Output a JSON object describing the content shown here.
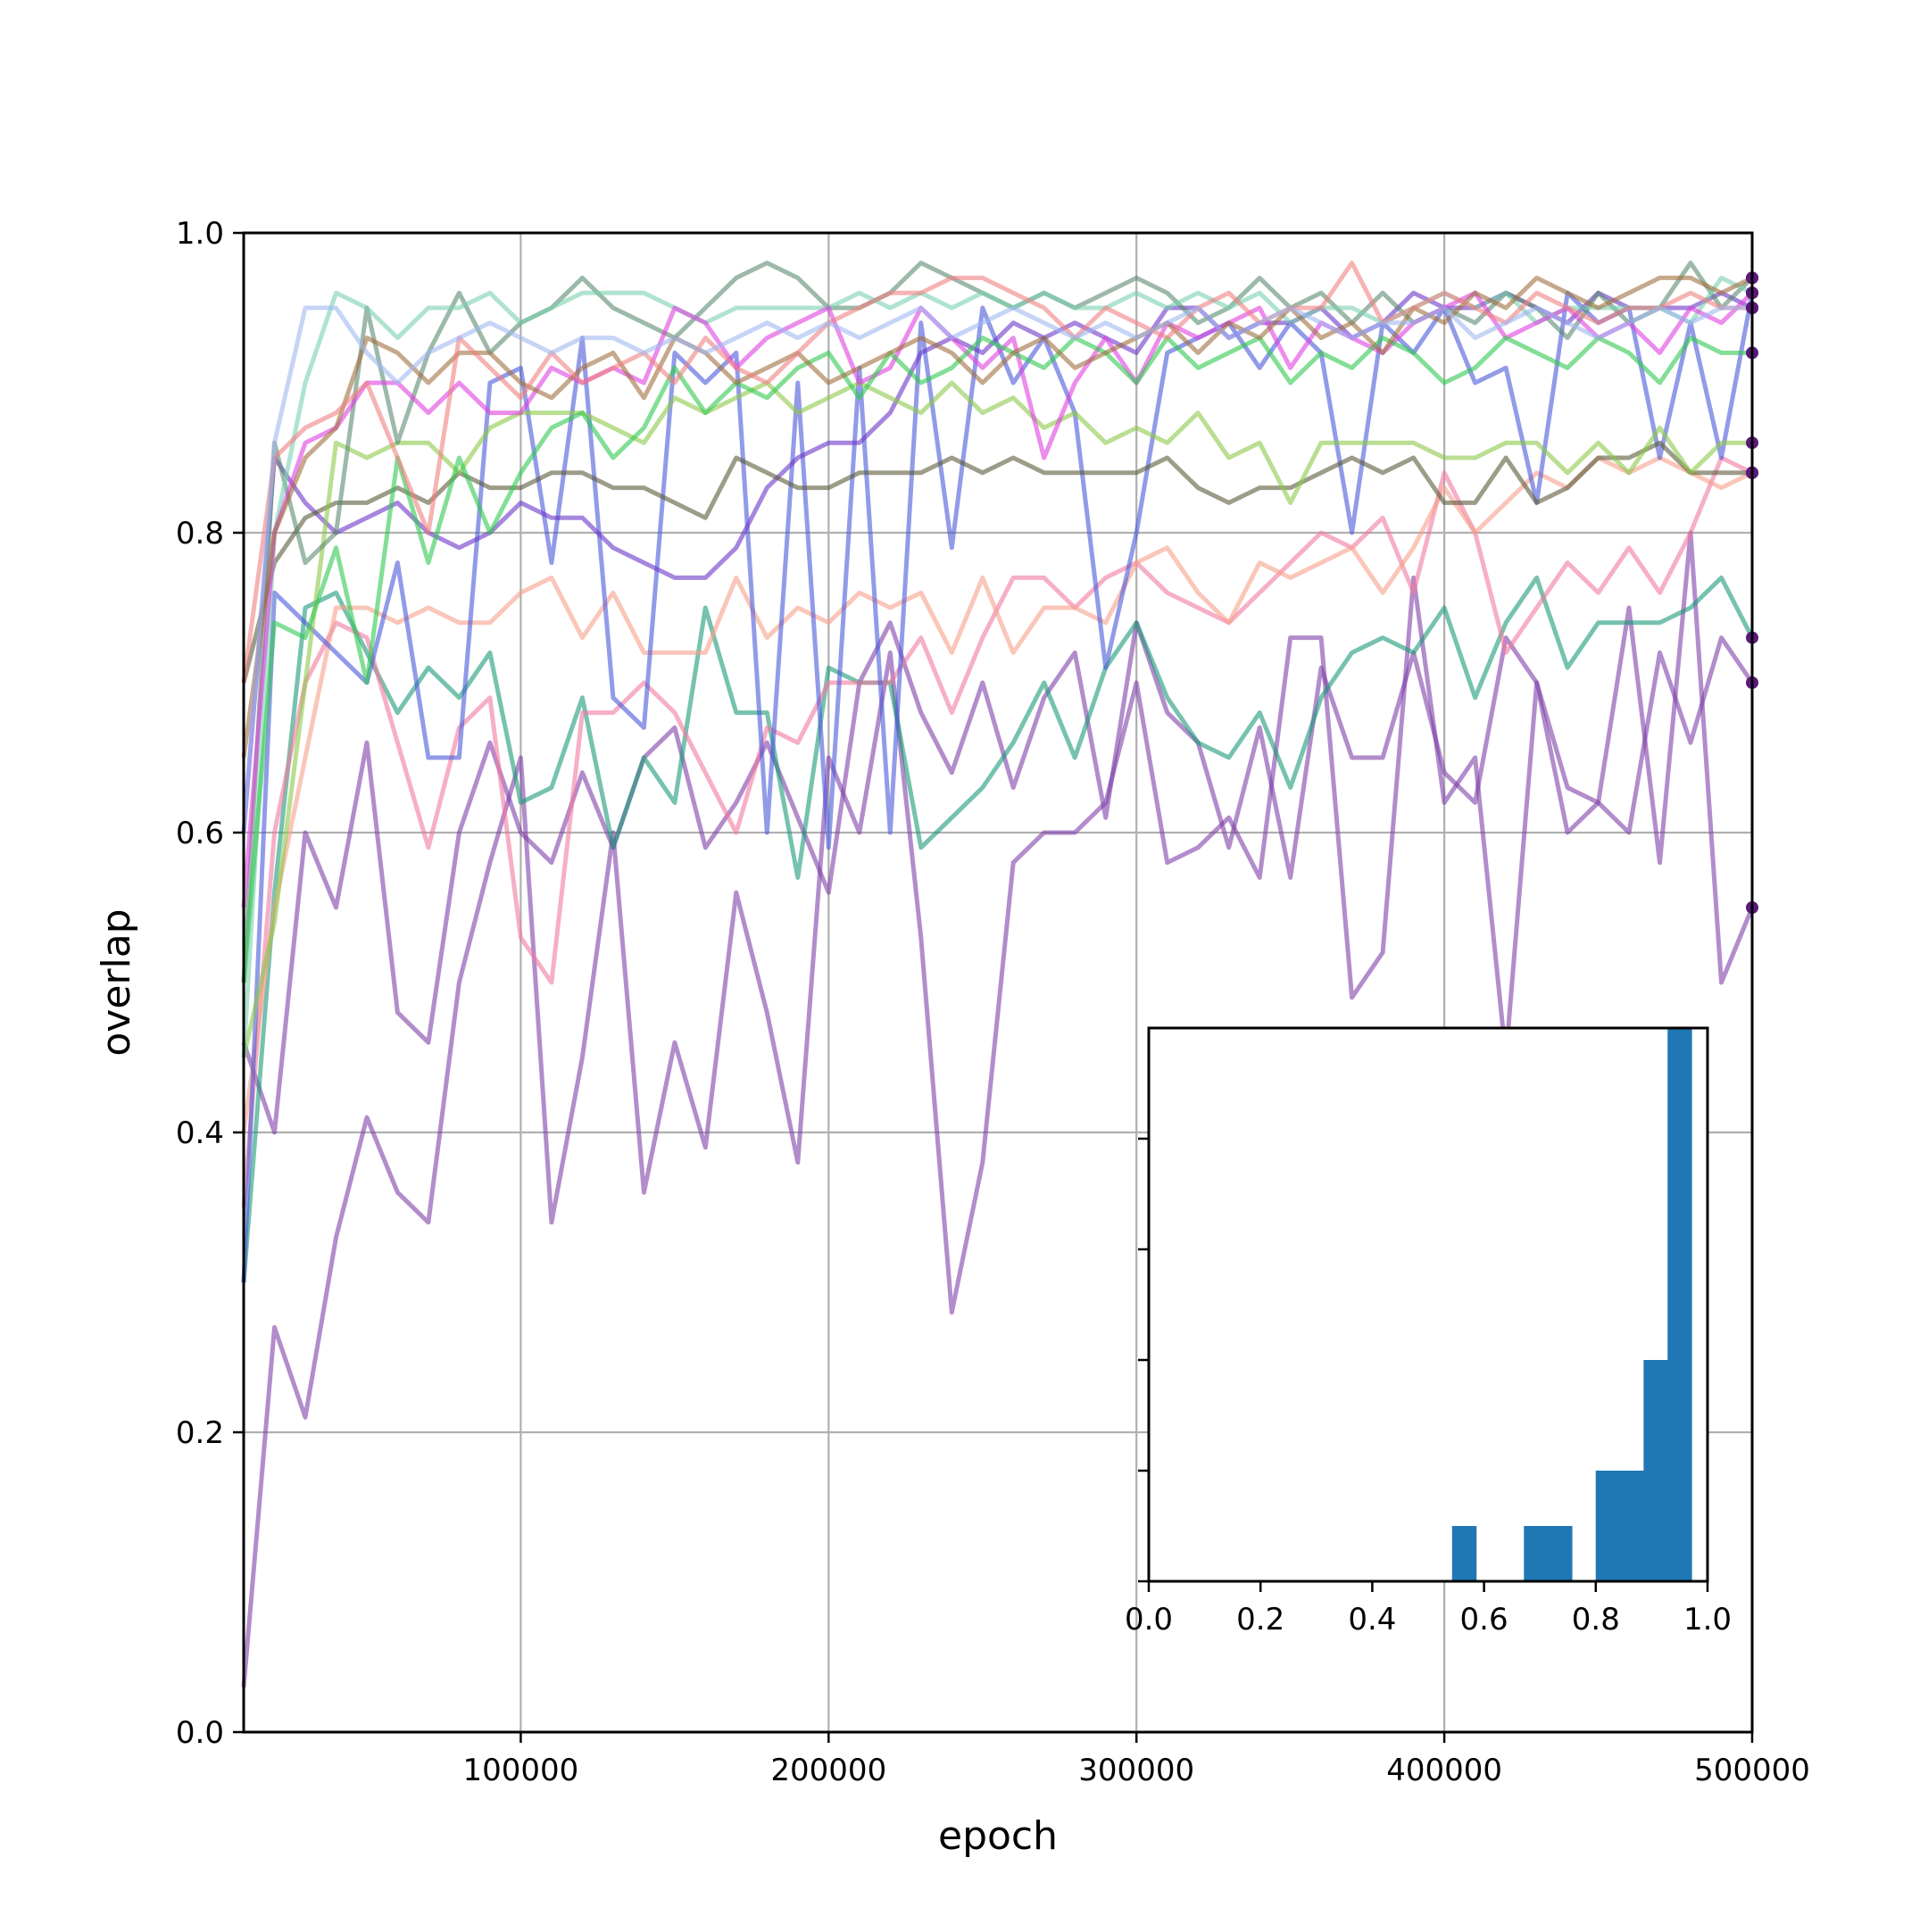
{
  "chart_data": [
    {
      "type": "line",
      "title": "",
      "xlabel": "epoch",
      "ylabel": "overlap",
      "xlim": [
        10000,
        500000
      ],
      "ylim": [
        0.0,
        1.0
      ],
      "xticks": [
        100000,
        200000,
        300000,
        400000,
        500000
      ],
      "xtick_labels": [
        "100000",
        "200000",
        "300000",
        "400000",
        "500000"
      ],
      "yticks": [
        0.0,
        0.2,
        0.4,
        0.6,
        0.8,
        1.0
      ],
      "ytick_labels": [
        "0.0",
        "0.2",
        "0.4",
        "0.6",
        "0.8",
        "1.0"
      ],
      "grid": true,
      "legend": "none",
      "x": [
        10000,
        20000,
        30000,
        40000,
        50000,
        60000,
        70000,
        80000,
        90000,
        100000,
        110000,
        120000,
        130000,
        140000,
        150000,
        160000,
        170000,
        180000,
        190000,
        200000,
        210000,
        220000,
        230000,
        240000,
        250000,
        260000,
        270000,
        280000,
        290000,
        300000,
        310000,
        320000,
        330000,
        340000,
        350000,
        360000,
        370000,
        380000,
        390000,
        400000,
        410000,
        420000,
        430000,
        440000,
        450000,
        460000,
        470000,
        480000,
        490000,
        500000
      ],
      "series": [
        {
          "color": "#7e3fa8",
          "values": [
            0.03,
            0.27,
            0.21,
            0.33,
            0.41,
            0.36,
            0.34,
            0.5,
            0.58,
            0.65,
            0.34,
            0.45,
            0.6,
            0.36,
            0.46,
            0.39,
            0.56,
            0.48,
            0.38,
            0.65,
            0.6,
            0.72,
            0.53,
            0.28,
            0.38,
            0.58,
            0.6,
            0.6,
            0.62,
            0.7,
            0.58,
            0.59,
            0.61,
            0.57,
            0.73,
            0.73,
            0.49,
            0.52,
            0.77,
            0.62,
            0.65,
            0.45,
            0.7,
            0.6,
            0.62,
            0.75,
            0.58,
            0.8,
            0.5,
            0.55
          ]
        },
        {
          "color": "#7e3fa8",
          "values": [
            0.46,
            0.4,
            0.6,
            0.55,
            0.66,
            0.48,
            0.46,
            0.6,
            0.66,
            0.6,
            0.58,
            0.64,
            0.59,
            0.65,
            0.67,
            0.59,
            0.62,
            0.66,
            0.61,
            0.56,
            0.7,
            0.74,
            0.68,
            0.64,
            0.7,
            0.63,
            0.69,
            0.72,
            0.61,
            0.74,
            0.68,
            0.66,
            0.59,
            0.67,
            0.57,
            0.71,
            0.65,
            0.65,
            0.72,
            0.64,
            0.62,
            0.73,
            0.7,
            0.63,
            0.62,
            0.6,
            0.72,
            0.66,
            0.73,
            0.7
          ]
        },
        {
          "color": "#1a9a7a",
          "values": [
            0.3,
            0.56,
            0.75,
            0.76,
            0.72,
            0.68,
            0.71,
            0.69,
            0.72,
            0.62,
            0.63,
            0.69,
            0.59,
            0.65,
            0.62,
            0.75,
            0.68,
            0.68,
            0.57,
            0.71,
            0.7,
            0.7,
            0.59,
            0.61,
            0.63,
            0.66,
            0.7,
            0.65,
            0.71,
            0.74,
            0.69,
            0.66,
            0.65,
            0.68,
            0.63,
            0.69,
            0.72,
            0.73,
            0.72,
            0.75,
            0.69,
            0.74,
            0.77,
            0.71,
            0.74,
            0.74,
            0.74,
            0.75,
            0.77,
            0.73
          ]
        },
        {
          "color": "#f07aa0",
          "values": [
            0.35,
            0.6,
            0.7,
            0.74,
            0.73,
            0.66,
            0.59,
            0.67,
            0.69,
            0.53,
            0.5,
            0.68,
            0.68,
            0.7,
            0.68,
            0.64,
            0.6,
            0.67,
            0.66,
            0.7,
            0.7,
            0.7,
            0.73,
            0.68,
            0.73,
            0.77,
            0.77,
            0.75,
            0.77,
            0.78,
            0.76,
            0.75,
            0.74,
            0.76,
            0.78,
            0.8,
            0.79,
            0.81,
            0.76,
            0.84,
            0.8,
            0.72,
            0.75,
            0.78,
            0.76,
            0.79,
            0.76,
            0.8,
            0.85,
            0.84
          ]
        },
        {
          "color": "#f6a08a",
          "values": [
            0.4,
            0.55,
            0.65,
            0.75,
            0.75,
            0.74,
            0.75,
            0.74,
            0.74,
            0.76,
            0.77,
            0.73,
            0.76,
            0.72,
            0.72,
            0.72,
            0.77,
            0.73,
            0.75,
            0.74,
            0.76,
            0.75,
            0.76,
            0.72,
            0.77,
            0.72,
            0.75,
            0.75,
            0.74,
            0.78,
            0.79,
            0.76,
            0.74,
            0.78,
            0.77,
            0.78,
            0.79,
            0.76,
            0.79,
            0.83,
            0.8,
            0.82,
            0.84,
            0.83,
            0.85,
            0.84,
            0.85,
            0.84,
            0.83,
            0.84
          ]
        },
        {
          "color": "#4a58d8",
          "values": [
            0.3,
            0.76,
            0.74,
            0.72,
            0.7,
            0.78,
            0.65,
            0.65,
            0.9,
            0.91,
            0.78,
            0.93,
            0.69,
            0.67,
            0.92,
            0.9,
            0.92,
            0.6,
            0.9,
            0.59,
            0.91,
            0.6,
            0.94,
            0.79,
            0.95,
            0.9,
            0.93,
            0.88,
            0.71,
            0.8,
            0.92,
            0.93,
            0.94,
            0.91,
            0.94,
            0.92,
            0.8,
            0.94,
            0.92,
            0.95,
            0.9,
            0.91,
            0.82,
            0.96,
            0.94,
            0.95,
            0.85,
            0.94,
            0.85,
            0.96
          ]
        },
        {
          "color": "#6a35c8",
          "values": [
            0.6,
            0.85,
            0.82,
            0.8,
            0.81,
            0.82,
            0.8,
            0.79,
            0.8,
            0.82,
            0.81,
            0.81,
            0.79,
            0.78,
            0.77,
            0.77,
            0.79,
            0.83,
            0.85,
            0.86,
            0.86,
            0.88,
            0.92,
            0.93,
            0.92,
            0.94,
            0.93,
            0.94,
            0.93,
            0.92,
            0.95,
            0.95,
            0.93,
            0.94,
            0.94,
            0.95,
            0.93,
            0.94,
            0.96,
            0.95,
            0.95,
            0.96,
            0.95,
            0.94,
            0.96,
            0.95,
            0.95,
            0.95,
            0.96,
            0.95
          ]
        },
        {
          "color": "#5a5a3a",
          "values": [
            0.7,
            0.78,
            0.81,
            0.82,
            0.82,
            0.83,
            0.82,
            0.84,
            0.83,
            0.83,
            0.84,
            0.84,
            0.83,
            0.83,
            0.82,
            0.81,
            0.85,
            0.84,
            0.83,
            0.83,
            0.84,
            0.84,
            0.84,
            0.85,
            0.84,
            0.85,
            0.84,
            0.84,
            0.84,
            0.84,
            0.85,
            0.83,
            0.82,
            0.83,
            0.83,
            0.84,
            0.85,
            0.84,
            0.85,
            0.82,
            0.82,
            0.85,
            0.82,
            0.83,
            0.85,
            0.85,
            0.86,
            0.84,
            0.84,
            0.84
          ]
        },
        {
          "color": "#8cc84a",
          "values": [
            0.45,
            0.54,
            0.7,
            0.86,
            0.85,
            0.86,
            0.86,
            0.84,
            0.87,
            0.88,
            0.88,
            0.88,
            0.87,
            0.86,
            0.89,
            0.88,
            0.89,
            0.9,
            0.88,
            0.89,
            0.9,
            0.89,
            0.88,
            0.9,
            0.88,
            0.89,
            0.87,
            0.88,
            0.86,
            0.87,
            0.86,
            0.88,
            0.85,
            0.86,
            0.82,
            0.86,
            0.86,
            0.86,
            0.86,
            0.85,
            0.85,
            0.86,
            0.86,
            0.84,
            0.86,
            0.84,
            0.87,
            0.84,
            0.86,
            0.86
          ]
        },
        {
          "color": "#5a8a70",
          "values": [
            0.5,
            0.86,
            0.78,
            0.8,
            0.95,
            0.86,
            0.92,
            0.96,
            0.92,
            0.94,
            0.95,
            0.97,
            0.95,
            0.94,
            0.93,
            0.95,
            0.97,
            0.98,
            0.97,
            0.95,
            0.95,
            0.96,
            0.98,
            0.97,
            0.96,
            0.95,
            0.96,
            0.95,
            0.96,
            0.97,
            0.96,
            0.94,
            0.95,
            0.97,
            0.95,
            0.96,
            0.94,
            0.96,
            0.94,
            0.95,
            0.94,
            0.96,
            0.95,
            0.93,
            0.96,
            0.94,
            0.95,
            0.98,
            0.95,
            0.97
          ]
        },
        {
          "color": "#7ad0b0",
          "values": [
            0.45,
            0.8,
            0.9,
            0.96,
            0.95,
            0.93,
            0.95,
            0.95,
            0.96,
            0.94,
            0.95,
            0.96,
            0.96,
            0.96,
            0.95,
            0.94,
            0.95,
            0.95,
            0.95,
            0.95,
            0.96,
            0.95,
            0.96,
            0.95,
            0.96,
            0.95,
            0.96,
            0.95,
            0.95,
            0.96,
            0.95,
            0.96,
            0.95,
            0.96,
            0.94,
            0.95,
            0.95,
            0.94,
            0.95,
            0.96,
            0.95,
            0.96,
            0.94,
            0.95,
            0.95,
            0.95,
            0.95,
            0.94,
            0.97,
            0.96
          ]
        },
        {
          "color": "#e040e0",
          "values": [
            0.55,
            0.8,
            0.86,
            0.87,
            0.9,
            0.9,
            0.88,
            0.9,
            0.88,
            0.88,
            0.91,
            0.9,
            0.91,
            0.9,
            0.95,
            0.94,
            0.91,
            0.93,
            0.94,
            0.95,
            0.9,
            0.91,
            0.95,
            0.93,
            0.91,
            0.93,
            0.85,
            0.9,
            0.93,
            0.9,
            0.94,
            0.93,
            0.94,
            0.95,
            0.91,
            0.94,
            0.93,
            0.92,
            0.94,
            0.95,
            0.96,
            0.93,
            0.94,
            0.95,
            0.93,
            0.94,
            0.92,
            0.95,
            0.94,
            0.96
          ]
        },
        {
          "color": "#30c850",
          "values": [
            0.5,
            0.74,
            0.73,
            0.79,
            0.7,
            0.85,
            0.78,
            0.85,
            0.8,
            0.84,
            0.87,
            0.88,
            0.85,
            0.87,
            0.91,
            0.88,
            0.9,
            0.89,
            0.91,
            0.92,
            0.89,
            0.92,
            0.9,
            0.91,
            0.93,
            0.92,
            0.91,
            0.93,
            0.92,
            0.9,
            0.93,
            0.91,
            0.92,
            0.93,
            0.9,
            0.92,
            0.91,
            0.93,
            0.92,
            0.9,
            0.91,
            0.93,
            0.92,
            0.91,
            0.93,
            0.92,
            0.9,
            0.93,
            0.92,
            0.92
          ]
        },
        {
          "color": "#a07040",
          "values": [
            0.65,
            0.8,
            0.85,
            0.87,
            0.93,
            0.92,
            0.9,
            0.92,
            0.92,
            0.9,
            0.89,
            0.91,
            0.92,
            0.89,
            0.93,
            0.92,
            0.9,
            0.91,
            0.92,
            0.9,
            0.91,
            0.92,
            0.93,
            0.92,
            0.9,
            0.92,
            0.93,
            0.91,
            0.92,
            0.93,
            0.94,
            0.92,
            0.94,
            0.93,
            0.95,
            0.93,
            0.94,
            0.92,
            0.95,
            0.94,
            0.96,
            0.95,
            0.97,
            0.96,
            0.95,
            0.96,
            0.97,
            0.97,
            0.96,
            0.97
          ]
        },
        {
          "color": "#f08080",
          "values": [
            0.7,
            0.85,
            0.87,
            0.88,
            0.9,
            0.85,
            0.8,
            0.93,
            0.91,
            0.89,
            0.92,
            0.9,
            0.91,
            0.92,
            0.9,
            0.93,
            0.91,
            0.9,
            0.92,
            0.94,
            0.95,
            0.96,
            0.96,
            0.97,
            0.97,
            0.96,
            0.95,
            0.93,
            0.95,
            0.94,
            0.93,
            0.95,
            0.96,
            0.94,
            0.95,
            0.95,
            0.98,
            0.94,
            0.95,
            0.96,
            0.95,
            0.94,
            0.96,
            0.95,
            0.94,
            0.95,
            0.95,
            0.96,
            0.95,
            0.95
          ]
        },
        {
          "color": "#a0b8f0",
          "values": [
            0.6,
            0.86,
            0.95,
            0.95,
            0.92,
            0.9,
            0.92,
            0.93,
            0.94,
            0.93,
            0.92,
            0.93,
            0.93,
            0.92,
            0.93,
            0.92,
            0.93,
            0.94,
            0.93,
            0.94,
            0.93,
            0.94,
            0.95,
            0.93,
            0.94,
            0.95,
            0.94,
            0.93,
            0.94,
            0.93,
            0.94,
            0.95,
            0.93,
            0.94,
            0.95,
            0.94,
            0.93,
            0.94,
            0.94,
            0.95,
            0.93,
            0.94,
            0.95,
            0.94,
            0.93,
            0.94,
            0.95,
            0.94,
            0.95,
            0.95
          ]
        }
      ],
      "end_marker_color": "#5a1a7a"
    },
    {
      "type": "bar",
      "title": "",
      "xlabel": "",
      "ylabel": "",
      "xlim": [
        0.0,
        1.0
      ],
      "xticks": [
        0.0,
        0.2,
        0.4,
        0.6,
        0.8,
        1.0
      ],
      "xtick_labels": [
        "0.0",
        "0.2",
        "0.4",
        "0.6",
        "0.8",
        "1.0"
      ],
      "ylim": [
        0,
        10
      ],
      "yticks": [
        0,
        2,
        4,
        6,
        8
      ],
      "ytick_labels": [],
      "bar_color": "#1f77b4",
      "bin_edges": [
        0.5428,
        0.5857,
        0.6285,
        0.6714,
        0.7142,
        0.7571,
        0.7999,
        0.8428,
        0.8856,
        0.9285,
        0.9713
      ],
      "values": [
        1,
        0,
        0,
        1,
        1,
        0,
        2,
        2,
        4,
        10
      ]
    }
  ]
}
